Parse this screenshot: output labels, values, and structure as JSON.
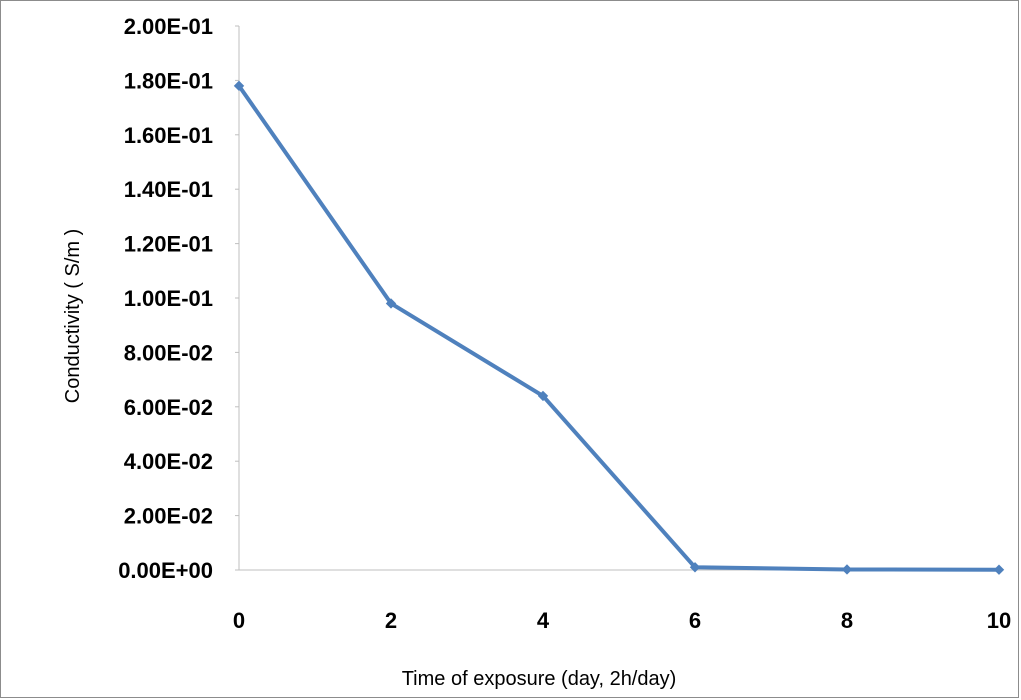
{
  "chart_data": {
    "type": "line",
    "title": "",
    "xlabel": "Time of exposure (day,  2h/day)",
    "ylabel": "Conductivity ( S/m )",
    "x": [
      0,
      2,
      4,
      6,
      8,
      10
    ],
    "series": [
      {
        "values": [
          0.178,
          0.098,
          0.064,
          0.001,
          0.0002,
          0.0001
        ],
        "color": "#4f81bd",
        "marker": "diamond"
      }
    ],
    "xlim": [
      0,
      10
    ],
    "ylim": [
      0,
      0.2
    ],
    "x_ticks": [
      0,
      2,
      4,
      6,
      8,
      10
    ],
    "x_tick_labels": [
      "0",
      "2",
      "4",
      "6",
      "8",
      "10"
    ],
    "y_ticks": [
      0,
      0.02,
      0.04,
      0.06,
      0.08,
      0.1,
      0.12,
      0.14,
      0.16,
      0.18,
      0.2
    ],
    "y_tick_labels": [
      "0.00E+00",
      "2.00E-02",
      "4.00E-02",
      "6.00E-02",
      "8.00E-02",
      "1.00E-01",
      "1.20E-01",
      "1.40E-01",
      "1.60E-01",
      "1.80E-01",
      "2.00E-01"
    ],
    "grid": false,
    "legend": "none",
    "axis_color": "#bfbfbf"
  }
}
